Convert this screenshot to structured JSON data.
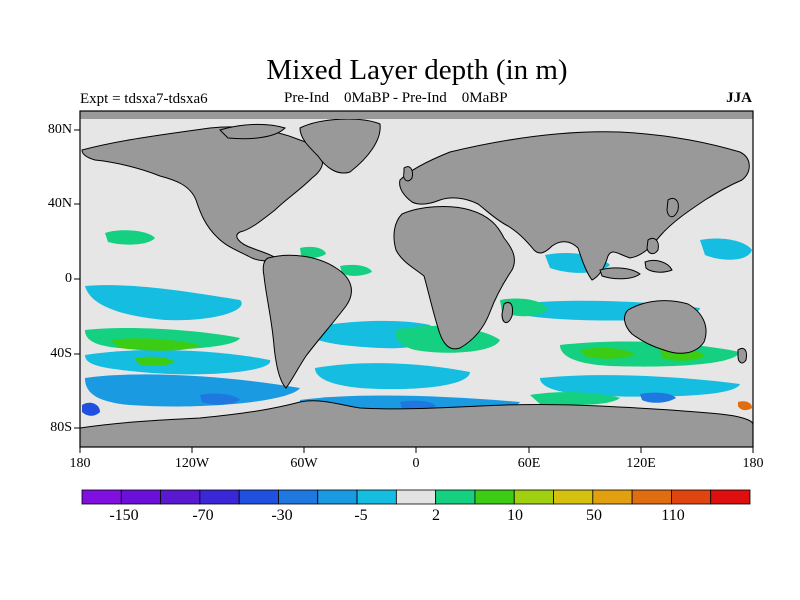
{
  "title": "Mixed Layer depth (in m)",
  "experiment": "Expt = tdsxa7-tdsxa6",
  "subtitle": "Pre-Ind    0MaBP - Pre-Ind    0MaBP",
  "season": "JJA",
  "map": {
    "lat_ticks": [
      "80N",
      "40N",
      "0",
      "40S",
      "80S"
    ],
    "lon_ticks": [
      "180",
      "120W",
      "60W",
      "0",
      "60E",
      "120E",
      "180"
    ],
    "colors": {
      "land": "#999999",
      "ocean": "#e6e6e6",
      "missing": "#dcdcdc"
    }
  },
  "colorbar": {
    "colors": [
      "#7f10e0",
      "#6a10d8",
      "#5a18d0",
      "#3a28d8",
      "#1f50e0",
      "#1e78e0",
      "#1a9ae0",
      "#15bde0",
      "#e3e3e3",
      "#14d080",
      "#3ccc14",
      "#a0d010",
      "#d6c010",
      "#e2a010",
      "#e06d10",
      "#e04510",
      "#e00f0f"
    ],
    "labels": [
      "-150",
      "-70",
      "-30",
      "-5",
      "2",
      "10",
      "50",
      "110"
    ]
  }
}
